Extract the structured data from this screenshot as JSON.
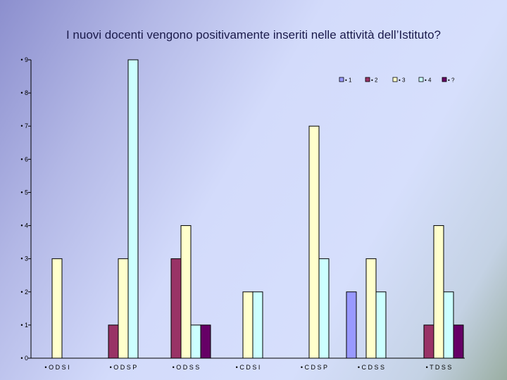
{
  "slide": {
    "title": "I nuovi docenti vengono positivamente inseriti nelle attività dell’Istituto?"
  },
  "chart_data": {
    "type": "bar",
    "title": "I nuovi docenti vengono positivamente inseriti nelle attività dell’Istituto?",
    "xlabel": "",
    "ylabel": "",
    "categories": [
      "• O D S I",
      "• O D S P",
      "• O D S S",
      "• C D S I",
      "• C D S P",
      "• C D S S",
      "• T D S S"
    ],
    "ylim": [
      0,
      9
    ],
    "y_ticks": [
      "• 0",
      "• 1",
      "• 2",
      "• 3",
      "• 4",
      "• 5",
      "• 6",
      "• 7",
      "• 8",
      "• 9"
    ],
    "grid": false,
    "legend_position": "top-right",
    "series": [
      {
        "name": "• 1",
        "color": "#9999ff",
        "values": [
          0,
          0,
          0,
          0,
          0,
          2,
          0
        ]
      },
      {
        "name": "• 2",
        "color": "#993366",
        "values": [
          0,
          1,
          3,
          0,
          0,
          0,
          1
        ]
      },
      {
        "name": "• 3",
        "color": "#ffffcc",
        "values": [
          3,
          3,
          4,
          2,
          7,
          3,
          4
        ]
      },
      {
        "name": "• 4",
        "color": "#ccffff",
        "values": [
          0,
          9,
          1,
          2,
          3,
          2,
          2
        ]
      },
      {
        "name": "• ?",
        "color": "#660066",
        "values": [
          0,
          0,
          1,
          0,
          0,
          0,
          1
        ]
      }
    ]
  }
}
